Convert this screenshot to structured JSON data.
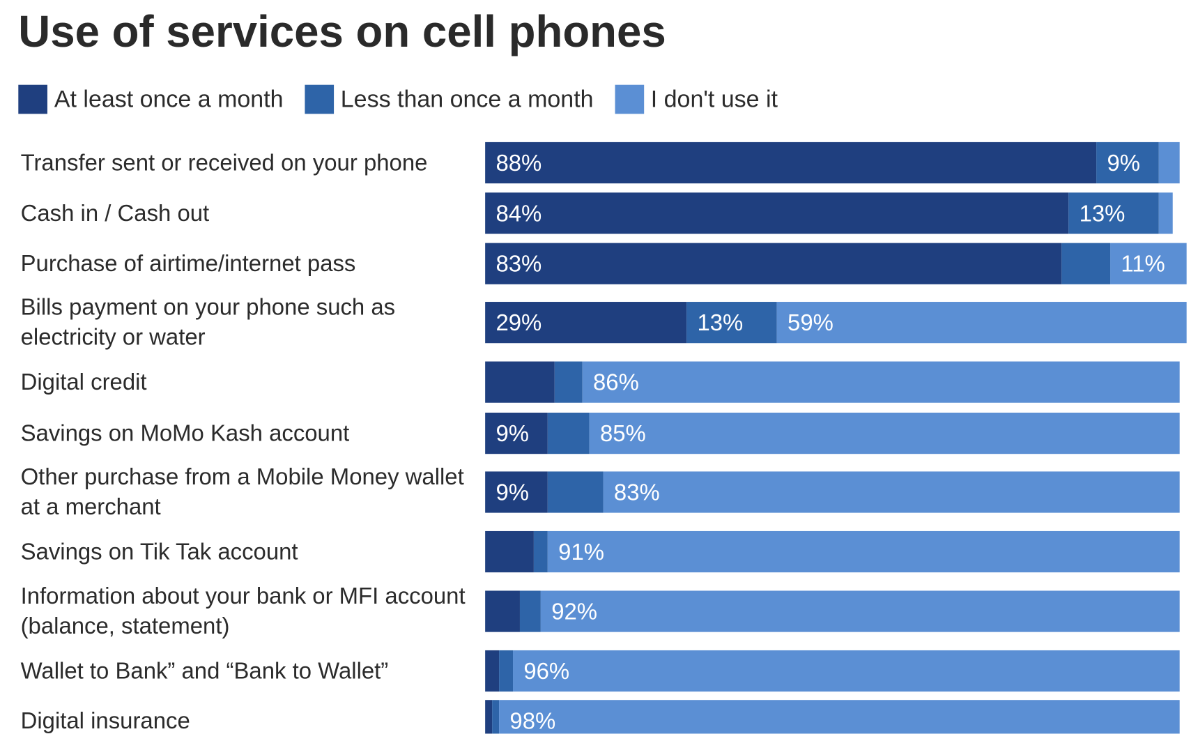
{
  "chart_data": {
    "type": "stacked-bar-horizontal",
    "title": "Use of services on cell phones",
    "categories": [
      "Transfer sent or received on your phone",
      "Cash in / Cash out",
      "Purchase of airtime/internet pass",
      "Bills payment on your phone such as electricity or water",
      "Digital credit",
      "Savings on MoMo Kash account",
      "Other purchase from a Mobile Money wallet at a merchant",
      "Savings on Tik Tak account",
      "Information about your bank or MFI account (balance, statement)",
      "Wallet to Bank” and “Bank to Wallet”",
      "Digital insurance"
    ],
    "xlim": [
      0,
      100
    ],
    "series": [
      {
        "name": "At least once a month",
        "color": "#1f3f7f",
        "values": [
          88,
          84,
          83,
          29,
          10,
          9,
          9,
          7,
          5,
          2,
          1
        ],
        "value_labels": [
          "88%",
          "84%",
          "83%",
          "29%",
          null,
          "9%",
          "9%",
          null,
          null,
          null,
          null
        ]
      },
      {
        "name": "Less than once a month",
        "color": "#2e64a8",
        "values": [
          9,
          13,
          7,
          13,
          4,
          6,
          8,
          2,
          3,
          2,
          1
        ],
        "value_labels": [
          "9%",
          "13%",
          null,
          "13%",
          null,
          null,
          null,
          null,
          null,
          null,
          null
        ]
      },
      {
        "name": "I don't use it",
        "color": "#5b8fd4",
        "values": [
          3,
          2,
          11,
          59,
          86,
          85,
          83,
          91,
          92,
          96,
          98
        ],
        "value_labels": [
          null,
          null,
          "11%",
          "59%",
          "86%",
          "85%",
          "83%",
          "91%",
          "92%",
          "96%",
          "98%"
        ]
      }
    ]
  }
}
